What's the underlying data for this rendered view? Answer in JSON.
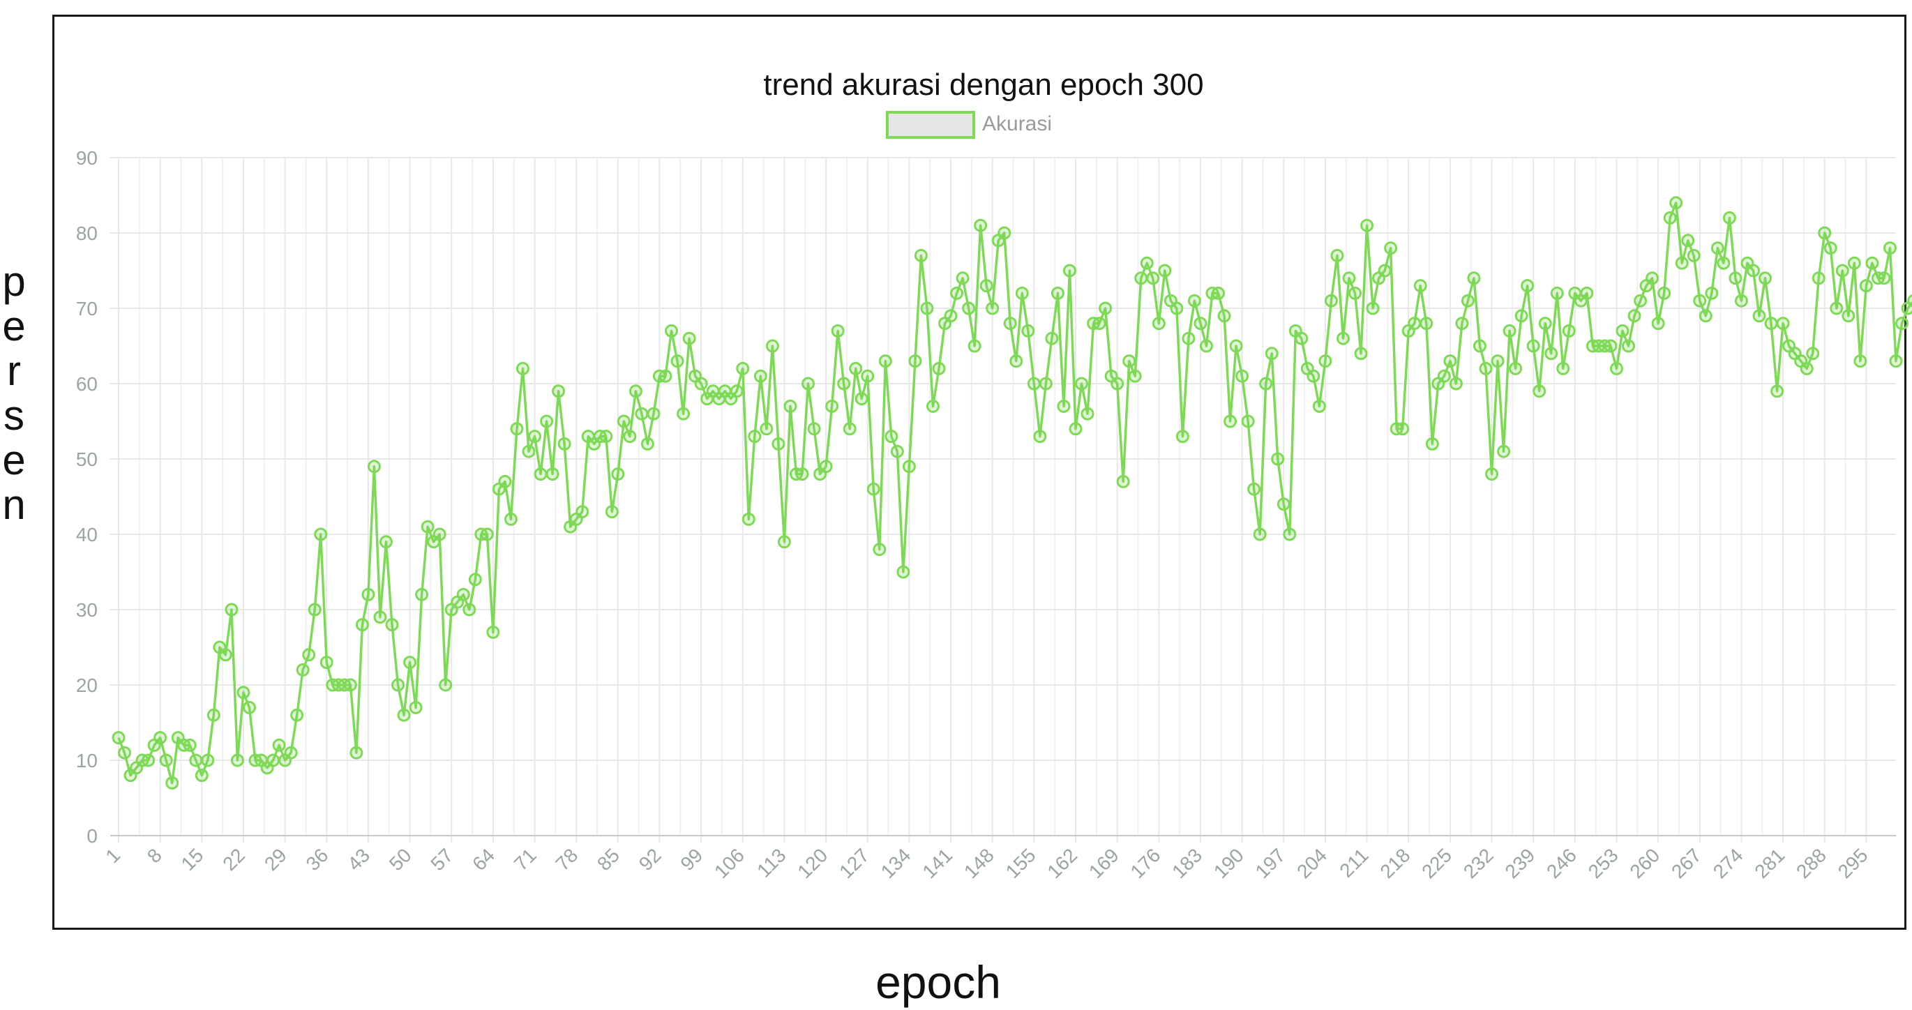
{
  "chart_data": {
    "type": "line",
    "title": "trend akurasi dengan epoch 300",
    "xlabel": "epoch",
    "ylabel": "persen",
    "legend": {
      "position": "top-center",
      "entries": [
        "Akurasi"
      ]
    },
    "grid": true,
    "ylim": [
      0,
      90
    ],
    "yticks": [
      0,
      10,
      20,
      30,
      40,
      50,
      60,
      70,
      80,
      90
    ],
    "xlim": [
      1,
      300
    ],
    "xticks": [
      1,
      8,
      15,
      22,
      29,
      36,
      43,
      50,
      57,
      64,
      71,
      78,
      85,
      92,
      99,
      106,
      113,
      120,
      127,
      134,
      141,
      148,
      155,
      162,
      169,
      176,
      183,
      190,
      197,
      204,
      211,
      218,
      225,
      232,
      239,
      246,
      253,
      260,
      267,
      274,
      281,
      288,
      295
    ],
    "series": [
      {
        "name": "Akurasi",
        "color": "#7ed957",
        "values": [
          13,
          11,
          8,
          9,
          10,
          10,
          12,
          13,
          10,
          7,
          13,
          12,
          12,
          10,
          8,
          10,
          16,
          25,
          24,
          30,
          10,
          19,
          17,
          10,
          10,
          9,
          10,
          12,
          10,
          11,
          16,
          22,
          24,
          30,
          40,
          23,
          20,
          20,
          20,
          20,
          11,
          28,
          32,
          49,
          29,
          39,
          28,
          20,
          16,
          23,
          17,
          32,
          41,
          39,
          40,
          20,
          30,
          31,
          32,
          30,
          34,
          40,
          40,
          27,
          46,
          47,
          42,
          54,
          62,
          51,
          53,
          48,
          55,
          48,
          59,
          52,
          41,
          42,
          43,
          53,
          52,
          53,
          53,
          43,
          48,
          55,
          53,
          59,
          56,
          52,
          56,
          61,
          61,
          67,
          63,
          56,
          66,
          61,
          60,
          58,
          59,
          58,
          59,
          58,
          59,
          62,
          42,
          53,
          61,
          54,
          65,
          52,
          39,
          57,
          48,
          48,
          60,
          54,
          48,
          49,
          57,
          67,
          60,
          54,
          62,
          58,
          61,
          46,
          38,
          63,
          53,
          51,
          35,
          49,
          63,
          77,
          70,
          57,
          62,
          68,
          69,
          72,
          74,
          70,
          65,
          81,
          73,
          70,
          79,
          80,
          68,
          63,
          72,
          67,
          60,
          53,
          60,
          66,
          72,
          57,
          75,
          54,
          60,
          56,
          68,
          68,
          70,
          61,
          60,
          47,
          63,
          61,
          74,
          76,
          74,
          68,
          75,
          71,
          70,
          53,
          66,
          71,
          68,
          65,
          72,
          72,
          69,
          55,
          65,
          61,
          55,
          46,
          40,
          60,
          64,
          50,
          44,
          40,
          67,
          66,
          62,
          61,
          57,
          63,
          71,
          77,
          66,
          74,
          72,
          64,
          81,
          70,
          74,
          75,
          78,
          54,
          54,
          67,
          68,
          73,
          68,
          52,
          60,
          61,
          63,
          60,
          68,
          71,
          74,
          65,
          62,
          48,
          63,
          51,
          67,
          62,
          69,
          73,
          65,
          59,
          68,
          64,
          72,
          62,
          67,
          72,
          71,
          72,
          65,
          65,
          65,
          65,
          62,
          67,
          65,
          69,
          71,
          73,
          74,
          68,
          72,
          82,
          84,
          76,
          79,
          77,
          71,
          69,
          72,
          78,
          76,
          82,
          74,
          71,
          76,
          75,
          69,
          74,
          68,
          59,
          68,
          65,
          64,
          63,
          62,
          64,
          74,
          80,
          78,
          70,
          75,
          69,
          76,
          63,
          73,
          76,
          74,
          74,
          78,
          63,
          68,
          70,
          71
        ]
      }
    ]
  }
}
